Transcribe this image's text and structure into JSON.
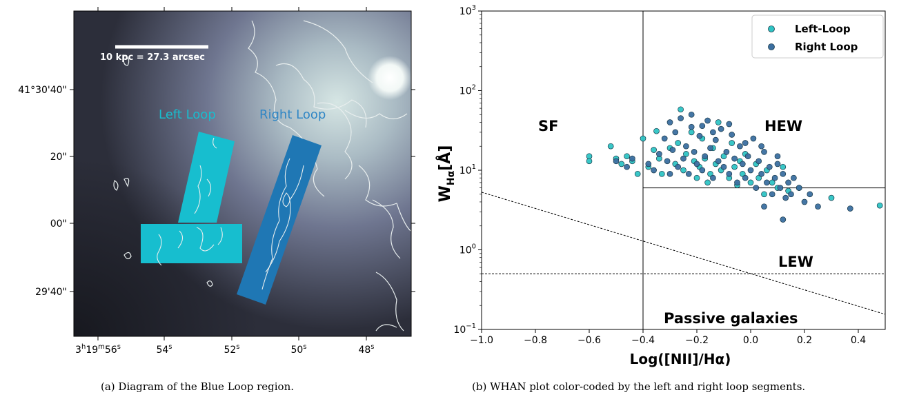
{
  "panel_a": {
    "scale_bar": "10 kpc = 27.3 arcsec",
    "region_labels": [
      "Left Loop",
      "Right Loop"
    ],
    "y_ticks": [
      "41°30'40\"",
      "20\"",
      "00\"",
      "29'40\""
    ],
    "x_ticks": [
      {
        "main": "3",
        "sup1": "h",
        "mid": "19",
        "sup2": "m",
        "end": "56",
        "sup3": "s"
      },
      {
        "main": "54",
        "sup1": "s"
      },
      {
        "main": "52",
        "sup1": "s"
      },
      {
        "main": "50",
        "sup1": "s"
      },
      {
        "main": "48",
        "sup1": "s"
      }
    ],
    "caption": "(a) Diagram of the Blue Loop region.",
    "colors": {
      "left_loop": "#17becf",
      "right_loop": "#1f77b4"
    }
  },
  "chart_data": {
    "type": "scatter",
    "xlabel": "Log([NII]/Hα)",
    "ylabel_main": "W",
    "ylabel_sub": "Hα",
    "ylabel_unit": "[Å]",
    "xlim": [
      -1.0,
      0.5
    ],
    "ylim": [
      0.1,
      1000
    ],
    "yscale": "log",
    "x_ticks": [
      "−1.0",
      "−0.8",
      "−0.6",
      "−0.4",
      "−0.2",
      "0.0",
      "0.2",
      "0.4"
    ],
    "y_ticks": [
      {
        "base": "10",
        "exp": "−1"
      },
      {
        "base": "10",
        "exp": "0"
      },
      {
        "base": "10",
        "exp": "1"
      },
      {
        "base": "10",
        "exp": "2"
      },
      {
        "base": "10",
        "exp": "3"
      }
    ],
    "legend_position": "top-right",
    "region_labels": [
      "SF",
      "HEW",
      "LEW",
      "Passive galaxies"
    ],
    "series": [
      {
        "name": "Left-Loop",
        "color": "#2ec4c4",
        "points": [
          [
            -0.6,
            15
          ],
          [
            -0.6,
            13
          ],
          [
            -0.52,
            20
          ],
          [
            -0.5,
            14
          ],
          [
            -0.48,
            12
          ],
          [
            -0.46,
            15
          ],
          [
            -0.44,
            13
          ],
          [
            -0.42,
            9
          ],
          [
            -0.4,
            25
          ],
          [
            -0.38,
            11
          ],
          [
            -0.36,
            18
          ],
          [
            -0.35,
            31
          ],
          [
            -0.34,
            14
          ],
          [
            -0.33,
            9
          ],
          [
            -0.3,
            19
          ],
          [
            -0.28,
            12
          ],
          [
            -0.27,
            22
          ],
          [
            -0.26,
            58
          ],
          [
            -0.25,
            10
          ],
          [
            -0.24,
            16
          ],
          [
            -0.22,
            30
          ],
          [
            -0.21,
            13
          ],
          [
            -0.2,
            8
          ],
          [
            -0.19,
            11
          ],
          [
            -0.18,
            25
          ],
          [
            -0.17,
            14
          ],
          [
            -0.16,
            7
          ],
          [
            -0.15,
            9
          ],
          [
            -0.14,
            19
          ],
          [
            -0.13,
            12
          ],
          [
            -0.12,
            40
          ],
          [
            -0.11,
            10
          ],
          [
            -0.1,
            15
          ],
          [
            -0.08,
            8
          ],
          [
            -0.07,
            22
          ],
          [
            -0.06,
            11
          ],
          [
            -0.05,
            6.5
          ],
          [
            -0.04,
            13
          ],
          [
            -0.03,
            9
          ],
          [
            -0.02,
            16
          ],
          [
            0.0,
            7
          ],
          [
            0.02,
            12
          ],
          [
            0.03,
            8
          ],
          [
            0.05,
            5
          ],
          [
            0.06,
            10
          ],
          [
            0.08,
            7
          ],
          [
            0.1,
            6
          ],
          [
            0.12,
            11
          ],
          [
            0.14,
            5.5
          ],
          [
            0.18,
            6
          ],
          [
            0.3,
            4.5
          ],
          [
            0.48,
            3.6
          ]
        ]
      },
      {
        "name": "Right Loop",
        "color": "#3b6fa0",
        "points": [
          [
            -0.5,
            13
          ],
          [
            -0.46,
            11
          ],
          [
            -0.44,
            14
          ],
          [
            -0.38,
            12
          ],
          [
            -0.36,
            10
          ],
          [
            -0.34,
            16
          ],
          [
            -0.32,
            25
          ],
          [
            -0.31,
            13
          ],
          [
            -0.3,
            9
          ],
          [
            -0.29,
            18
          ],
          [
            -0.28,
            30
          ],
          [
            -0.27,
            11
          ],
          [
            -0.26,
            45
          ],
          [
            -0.25,
            14
          ],
          [
            -0.24,
            20
          ],
          [
            -0.23,
            9
          ],
          [
            -0.22,
            35
          ],
          [
            -0.21,
            17
          ],
          [
            -0.2,
            12
          ],
          [
            -0.19,
            27
          ],
          [
            -0.18,
            10
          ],
          [
            -0.17,
            15
          ],
          [
            -0.16,
            42
          ],
          [
            -0.15,
            19
          ],
          [
            -0.14,
            8
          ],
          [
            -0.13,
            24
          ],
          [
            -0.12,
            13
          ],
          [
            -0.11,
            33
          ],
          [
            -0.1,
            11
          ],
          [
            -0.09,
            17
          ],
          [
            -0.08,
            9
          ],
          [
            -0.07,
            28
          ],
          [
            -0.06,
            14
          ],
          [
            -0.05,
            7
          ],
          [
            -0.04,
            20
          ],
          [
            -0.03,
            12
          ],
          [
            -0.02,
            8
          ],
          [
            -0.01,
            15
          ],
          [
            0.0,
            10
          ],
          [
            0.01,
            25
          ],
          [
            0.02,
            6
          ],
          [
            0.03,
            13
          ],
          [
            0.04,
            9
          ],
          [
            0.05,
            17
          ],
          [
            0.06,
            7
          ],
          [
            0.07,
            11
          ],
          [
            0.08,
            5
          ],
          [
            0.09,
            8
          ],
          [
            0.1,
            12
          ],
          [
            0.11,
            6
          ],
          [
            0.12,
            9
          ],
          [
            0.13,
            4.5
          ],
          [
            0.14,
            7
          ],
          [
            0.15,
            5
          ],
          [
            0.16,
            8
          ],
          [
            0.18,
            6
          ],
          [
            0.2,
            4
          ],
          [
            0.22,
            5
          ],
          [
            0.25,
            3.5
          ],
          [
            0.12,
            2.4
          ],
          [
            0.37,
            3.3
          ],
          [
            0.05,
            3.5
          ],
          [
            -0.3,
            40
          ],
          [
            -0.22,
            50
          ],
          [
            -0.18,
            36
          ],
          [
            -0.14,
            30
          ],
          [
            -0.08,
            38
          ],
          [
            -0.02,
            22
          ],
          [
            0.04,
            20
          ],
          [
            0.1,
            15
          ]
        ]
      }
    ],
    "caption": "(b) WHAN plot color-coded by the left and right loop segments."
  }
}
